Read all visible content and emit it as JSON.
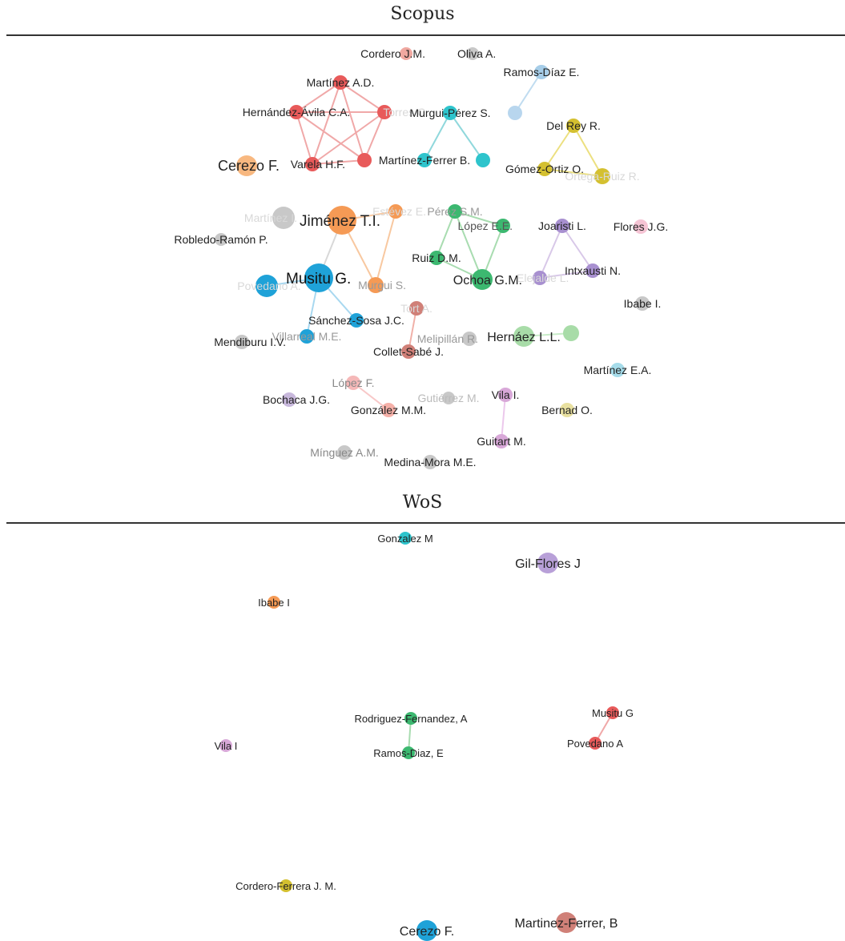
{
  "sections": [
    {
      "title": "Scopus",
      "nodes": [
        {
          "id": "s1",
          "label": "Cordero J.M.",
          "color": "#f0a8a0",
          "r": 8,
          "fs": 14,
          "lc": "#222",
          "align": "end"
        },
        {
          "id": "s2",
          "label": "Oliva A.",
          "color": "#c8c8c8",
          "r": 8,
          "fs": 14,
          "lc": "#222",
          "align": "start"
        },
        {
          "id": "s3",
          "label": "Ramos-Díaz E.",
          "color": "#a6cde8",
          "r": 9,
          "fs": 14,
          "lc": "#222",
          "align": "middle"
        },
        {
          "id": "s4",
          "label": "",
          "color": "#b8d6ee",
          "r": 9,
          "fs": 14,
          "lc": "#222",
          "align": "middle"
        },
        {
          "id": "s5",
          "label": "Martínez A.D.",
          "color": "#e85a5a",
          "r": 9,
          "fs": 14,
          "lc": "#222",
          "align": "middle"
        },
        {
          "id": "s6",
          "label": "Hernández-Ávila C.A.",
          "color": "#e85a5a",
          "r": 9,
          "fs": 14,
          "lc": "#222",
          "align": "middle"
        },
        {
          "id": "s7",
          "label": "Torres C.",
          "color": "#e85a5a",
          "r": 9,
          "fs": 14,
          "lc": "#d8d8d8",
          "align": "end"
        },
        {
          "id": "s8",
          "label": "Varela H.F.",
          "color": "#e85a5a",
          "r": 9,
          "fs": 14,
          "lc": "#222",
          "align": "end"
        },
        {
          "id": "s9",
          "label": "Martínez-Ferrer B.",
          "color": "#2ec4cc",
          "r": 9,
          "fs": 14,
          "lc": "#222",
          "align": "middle"
        },
        {
          "id": "s10",
          "label": "Murgui-Pérez S.",
          "color": "#2ec4cc",
          "r": 9,
          "fs": 14,
          "lc": "#222",
          "align": "middle"
        },
        {
          "id": "s11",
          "label": "",
          "color": "#2ec4cc",
          "r": 9,
          "fs": 14,
          "lc": "#222",
          "align": "middle"
        },
        {
          "id": "s12",
          "label": "",
          "color": "#e85a5a",
          "r": 9,
          "fs": 14,
          "lc": "#222",
          "align": "middle"
        },
        {
          "id": "s13",
          "label": "Del Rey R.",
          "color": "#d4c030",
          "r": 9,
          "fs": 14,
          "lc": "#222",
          "align": "middle"
        },
        {
          "id": "s14",
          "label": "Gómez-Ortiz O.",
          "color": "#d4c030",
          "r": 9,
          "fs": 14,
          "lc": "#222",
          "align": "middle"
        },
        {
          "id": "s15",
          "label": "Ortega-Ruiz R.",
          "color": "#d4c030",
          "r": 10,
          "fs": 14,
          "lc": "#d8d8d8",
          "align": "middle"
        },
        {
          "id": "s16",
          "label": "Cerezo F.",
          "color": "#f8b880",
          "r": 13,
          "fs": 18,
          "lc": "#222",
          "align": "end"
        },
        {
          "id": "s17",
          "label": "Martínez I.",
          "color": "#c8c8c8",
          "r": 14,
          "fs": 14,
          "lc": "#d8d8d8",
          "align": "middle"
        },
        {
          "id": "s18",
          "label": "Jiménez T.I.",
          "color": "#f59a55",
          "r": 18,
          "fs": 19,
          "lc": "#222",
          "align": "start"
        },
        {
          "id": "s19",
          "label": "Estévez E.",
          "color": "#f59a55",
          "r": 9,
          "fs": 14,
          "lc": "#d8d8d8",
          "align": "end"
        },
        {
          "id": "s20",
          "label": "Murgui S.",
          "color": "#f59a55",
          "r": 10,
          "fs": 14,
          "lc": "#999",
          "align": "end"
        },
        {
          "id": "s21",
          "label": "Robledo-Ramón P.",
          "color": "#c8c8c8",
          "r": 8,
          "fs": 14,
          "lc": "#222",
          "align": "middle"
        },
        {
          "id": "s22",
          "label": "Musitu G.",
          "color": "#1fa2d8",
          "r": 18,
          "fs": 19,
          "lc": "#111",
          "align": "start"
        },
        {
          "id": "s23",
          "label": "Povedano A.",
          "color": "#1fa2d8",
          "r": 14,
          "fs": 14,
          "lc": "#d8d8d8",
          "align": "middle"
        },
        {
          "id": "s24",
          "label": "Pérez S.M.",
          "color": "#3cb870",
          "r": 9,
          "fs": 14,
          "lc": "#999",
          "align": "middle"
        },
        {
          "id": "s25",
          "label": "López E.E.",
          "color": "#3cb870",
          "r": 9,
          "fs": 14,
          "lc": "#555",
          "align": "end"
        },
        {
          "id": "s26",
          "label": "Ruiz D.M.",
          "color": "#3cb870",
          "r": 9,
          "fs": 14,
          "lc": "#222",
          "align": "middle"
        },
        {
          "id": "s27",
          "label": "Ochoa G.M.",
          "color": "#3cb870",
          "r": 13,
          "fs": 16,
          "lc": "#222",
          "align": "end"
        },
        {
          "id": "s28",
          "label": "Joaristi L.",
          "color": "#a890d0",
          "r": 9,
          "fs": 14,
          "lc": "#222",
          "align": "middle"
        },
        {
          "id": "s29",
          "label": "Elejalde L.",
          "color": "#a890d0",
          "r": 9,
          "fs": 14,
          "lc": "#d8d8d8",
          "align": "start"
        },
        {
          "id": "s30",
          "label": "Intxausti N.",
          "color": "#a890d0",
          "r": 9,
          "fs": 14,
          "lc": "#222",
          "align": "middle"
        },
        {
          "id": "s31",
          "label": "Flores J.G.",
          "color": "#f5c4d4",
          "r": 9,
          "fs": 14,
          "lc": "#222",
          "align": "middle"
        },
        {
          "id": "s32",
          "label": "Ibabe I.",
          "color": "#c8c8c8",
          "r": 9,
          "fs": 14,
          "lc": "#222",
          "align": "middle"
        },
        {
          "id": "s33",
          "label": "Tort A.",
          "color": "#d08078",
          "r": 9,
          "fs": 14,
          "lc": "#d8d8d8",
          "align": "middle"
        },
        {
          "id": "s34",
          "label": "Sánchez-Sosa J.C.",
          "color": "#1fa2d8",
          "r": 9,
          "fs": 14,
          "lc": "#222",
          "align": "middle"
        },
        {
          "id": "s35",
          "label": "Villarreal M.E.",
          "color": "#1fa2d8",
          "r": 9,
          "fs": 14,
          "lc": "#999",
          "align": "middle"
        },
        {
          "id": "s36",
          "label": "Mendiburu I.V.",
          "color": "#c8c8c8",
          "r": 9,
          "fs": 14,
          "lc": "#222",
          "align": "end"
        },
        {
          "id": "s37",
          "label": "Collet-Sabé J.",
          "color": "#d08078",
          "r": 9,
          "fs": 14,
          "lc": "#222",
          "align": "middle"
        },
        {
          "id": "s38",
          "label": "Melipillán R.",
          "color": "#c8c8c8",
          "r": 9,
          "fs": 14,
          "lc": "#999",
          "align": "end"
        },
        {
          "id": "s39",
          "label": "Hernáez L.L.",
          "color": "#a8dca8",
          "r": 13,
          "fs": 16,
          "lc": "#222",
          "align": "middle"
        },
        {
          "id": "s40",
          "label": "",
          "color": "#a8dca8",
          "r": 10,
          "fs": 14,
          "lc": "#222",
          "align": "middle"
        },
        {
          "id": "s41",
          "label": "Martínez E.A.",
          "color": "#a6dcea",
          "r": 9,
          "fs": 14,
          "lc": "#222",
          "align": "middle"
        },
        {
          "id": "s42",
          "label": "López F.",
          "color": "#f5b8b8",
          "r": 9,
          "fs": 14,
          "lc": "#888",
          "align": "middle"
        },
        {
          "id": "s43",
          "label": "Bochaca J.G.",
          "color": "#c8b8dc",
          "r": 9,
          "fs": 14,
          "lc": "#222",
          "align": "end"
        },
        {
          "id": "s44",
          "label": "González M.M.",
          "color": "#f5b0a8",
          "r": 9,
          "fs": 14,
          "lc": "#222",
          "align": "middle"
        },
        {
          "id": "s45",
          "label": "Gutiérrez M.",
          "color": "#c8c8c8",
          "r": 8,
          "fs": 14,
          "lc": "#bbb",
          "align": "middle"
        },
        {
          "id": "s46",
          "label": "Vila I.",
          "color": "#d8a8d8",
          "r": 9,
          "fs": 14,
          "lc": "#222",
          "align": "middle"
        },
        {
          "id": "s47",
          "label": "Bernad O.",
          "color": "#e8e0a0",
          "r": 9,
          "fs": 14,
          "lc": "#222",
          "align": "middle"
        },
        {
          "id": "s48",
          "label": "Guitart M.",
          "color": "#d8a8d8",
          "r": 9,
          "fs": 14,
          "lc": "#222",
          "align": "middle"
        },
        {
          "id": "s49",
          "label": "Mínguez A.M.",
          "color": "#c8c8c8",
          "r": 9,
          "fs": 14,
          "lc": "#888",
          "align": "middle"
        },
        {
          "id": "s50",
          "label": "Medina-Mora M.E.",
          "color": "#c8c8c8",
          "r": 9,
          "fs": 14,
          "lc": "#222",
          "align": "middle"
        }
      ],
      "edges": [
        {
          "a": "s5",
          "b": "s6",
          "color": "#f0a8a8"
        },
        {
          "a": "s5",
          "b": "s12",
          "color": "#f0a8a8"
        },
        {
          "a": "s5",
          "b": "s8",
          "color": "#f0a8a8"
        },
        {
          "a": "s5",
          "b": "s7",
          "color": "#f0a8a8"
        },
        {
          "a": "s6",
          "b": "s12",
          "color": "#f0a8a8"
        },
        {
          "a": "s6",
          "b": "s8",
          "color": "#f0a8a8"
        },
        {
          "a": "s6",
          "b": "s7",
          "color": "#f0a8a8"
        },
        {
          "a": "s12",
          "b": "s8",
          "color": "#f0a8a8"
        },
        {
          "a": "s12",
          "b": "s7",
          "color": "#f0a8a8"
        },
        {
          "a": "s8",
          "b": "s7",
          "color": "#f0a8a8"
        },
        {
          "a": "s10",
          "b": "s9",
          "color": "#90d8dc"
        },
        {
          "a": "s10",
          "b": "s11",
          "color": "#90d8dc"
        },
        {
          "a": "s3",
          "b": "s4",
          "color": "#c0dcf0"
        },
        {
          "a": "s13",
          "b": "s14",
          "color": "#ece080"
        },
        {
          "a": "s13",
          "b": "s15",
          "color": "#ece080"
        },
        {
          "a": "s14",
          "b": "s15",
          "color": "#ece080"
        },
        {
          "a": "s18",
          "b": "s19",
          "color": "#f8c8a0"
        },
        {
          "a": "s18",
          "b": "s20",
          "color": "#f8c8a0"
        },
        {
          "a": "s19",
          "b": "s20",
          "color": "#f8c8a0"
        },
        {
          "a": "s18",
          "b": "s22",
          "color": "#d8d8d8"
        },
        {
          "a": "s22",
          "b": "s23",
          "color": "#a8d8f0"
        },
        {
          "a": "s22",
          "b": "s34",
          "color": "#a8d8f0"
        },
        {
          "a": "s22",
          "b": "s35",
          "color": "#a8d8f0"
        },
        {
          "a": "s24",
          "b": "s25",
          "color": "#a8dcb0"
        },
        {
          "a": "s24",
          "b": "s26",
          "color": "#a8dcb0"
        },
        {
          "a": "s25",
          "b": "s27",
          "color": "#a8dcb0"
        },
        {
          "a": "s26",
          "b": "s27",
          "color": "#a8dcb0"
        },
        {
          "a": "s24",
          "b": "s27",
          "color": "#a8dcb0"
        },
        {
          "a": "s28",
          "b": "s29",
          "color": "#d8c8e8"
        },
        {
          "a": "s28",
          "b": "s30",
          "color": "#d8c8e8"
        },
        {
          "a": "s29",
          "b": "s30",
          "color": "#d8c8e8"
        },
        {
          "a": "s33",
          "b": "s37",
          "color": "#f0b0a8"
        },
        {
          "a": "s42",
          "b": "s44",
          "color": "#f8c8c8"
        },
        {
          "a": "s46",
          "b": "s48",
          "color": "#ecc8ec"
        },
        {
          "a": "s39",
          "b": "s40",
          "color": "#c8ecc8"
        }
      ]
    },
    {
      "title": "WoS",
      "nodes": [
        {
          "id": "w1",
          "label": "Gonzalez M",
          "color": "#2ec4cc",
          "r": 8,
          "fs": 13,
          "lc": "#222",
          "align": "middle"
        },
        {
          "id": "w2",
          "label": "Gil-Flores J",
          "color": "#b8a0d8",
          "r": 13,
          "fs": 16,
          "lc": "#222",
          "align": "middle"
        },
        {
          "id": "w3",
          "label": "Ibabe I",
          "color": "#f59a55",
          "r": 8,
          "fs": 13,
          "lc": "#222",
          "align": "middle"
        },
        {
          "id": "w4",
          "label": "Rodriguez-Fernandez, A",
          "color": "#3cb870",
          "r": 8,
          "fs": 13,
          "lc": "#222",
          "align": "middle"
        },
        {
          "id": "w5",
          "label": "Ramos-Diaz, E",
          "color": "#3cb870",
          "r": 8,
          "fs": 13,
          "lc": "#222",
          "align": "middle"
        },
        {
          "id": "w6",
          "label": "Musitu G",
          "color": "#e85a5a",
          "r": 8,
          "fs": 13,
          "lc": "#222",
          "align": "middle"
        },
        {
          "id": "w7",
          "label": "Povedano A",
          "color": "#e85a5a",
          "r": 8,
          "fs": 13,
          "lc": "#222",
          "align": "middle"
        },
        {
          "id": "w8",
          "label": "Vila I",
          "color": "#d8a8d8",
          "r": 8,
          "fs": 13,
          "lc": "#222",
          "align": "middle"
        },
        {
          "id": "w9",
          "label": "Cordero-Ferrera J. M.",
          "color": "#d4c030",
          "r": 8,
          "fs": 13,
          "lc": "#222",
          "align": "middle"
        },
        {
          "id": "w10",
          "label": "Martinez-Ferrer, B",
          "color": "#d08078",
          "r": 13,
          "fs": 16,
          "lc": "#222",
          "align": "middle"
        },
        {
          "id": "w11",
          "label": "Cerezo F.",
          "color": "#1fa2d8",
          "r": 13,
          "fs": 16,
          "lc": "#222",
          "align": "middle"
        }
      ],
      "edges": [
        {
          "a": "w4",
          "b": "w5",
          "color": "#a8dcb0"
        },
        {
          "a": "w6",
          "b": "w7",
          "color": "#f0a8a8"
        }
      ]
    }
  ]
}
